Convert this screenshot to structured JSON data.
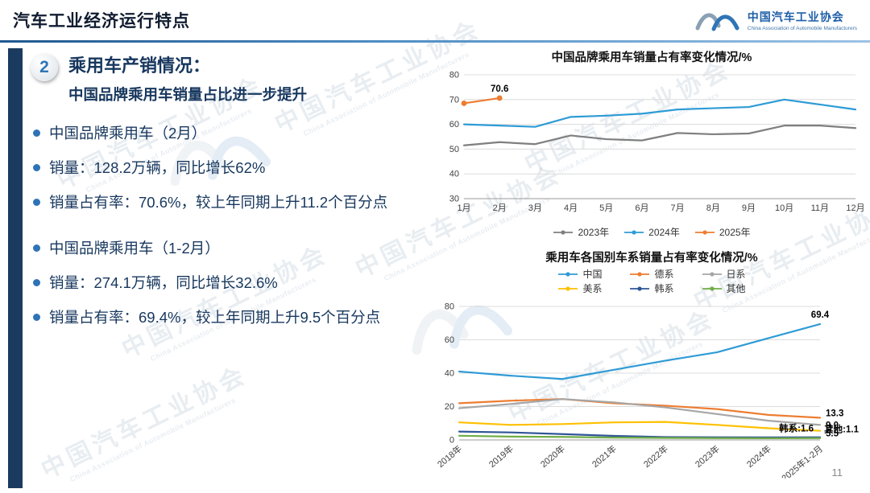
{
  "header": {
    "title": "汽车工业经济运行特点",
    "logo": {
      "org_cn": "中国汽车工业协会",
      "org_en": "China Association of Automobile Manufacturers"
    }
  },
  "section": {
    "number": "2",
    "heading": "乘用车产销情况：",
    "subheading": "中国品牌乘用车销量占比进一步提升"
  },
  "bullets_group1": [
    "中国品牌乘用车（2月）",
    "销量：128.2万辆，同比增长62%",
    "销量占有率：70.6%，较上年同期上升11.2个百分点"
  ],
  "bullets_group2": [
    "中国品牌乘用车（1-2月）",
    "销量：274.1万辆，同比增长32.6%",
    "销量占有率：69.4%，较上年同期上升9.5个百分点"
  ],
  "page_number": "11",
  "watermark": {
    "cn": "中国汽车工业协会",
    "en": "China Association of Automobile Manufacturers"
  },
  "accent_colors": {
    "navy": "#17375e",
    "bullet_blue": "#2e74b5",
    "header_rule_blue": "#4f8ec4"
  },
  "chart_data": [
    {
      "type": "line",
      "title": "中国品牌乘用车销量占有率变化情况/%",
      "categories": [
        "1月",
        "2月",
        "3月",
        "4月",
        "5月",
        "6月",
        "7月",
        "8月",
        "9月",
        "10月",
        "11月",
        "12月"
      ],
      "ylim": [
        30,
        80
      ],
      "yticks": [
        30,
        40,
        50,
        60,
        70,
        80
      ],
      "grid": true,
      "legend_position": "bottom",
      "margins": {
        "l": 38,
        "r": 16,
        "t": 12,
        "b": 26
      },
      "series": [
        {
          "name": "2023年",
          "color": "#7f7f7f",
          "values": [
            51.5,
            52.8,
            52.0,
            55.5,
            54.0,
            53.5,
            56.5,
            56.0,
            56.3,
            59.5,
            59.5,
            58.5
          ]
        },
        {
          "name": "2024年",
          "color": "#2e9bd6",
          "values": [
            60.0,
            59.5,
            59.0,
            63.0,
            63.5,
            64.3,
            66.0,
            66.5,
            67.0,
            70.0,
            68.0,
            66.0
          ]
        },
        {
          "name": "2025年",
          "color": "#ed7d31",
          "marker": true,
          "values": [
            68.5,
            70.6
          ],
          "end_label": "70.6",
          "label_offset": [
            0,
            -8
          ],
          "label_anchor": "middle"
        }
      ]
    },
    {
      "type": "line",
      "title": "乘用车各国别车系销量占有率变化情况/%",
      "categories": [
        "2018年",
        "2019年",
        "2020年",
        "2021年",
        "2022年",
        "2023年",
        "2024年",
        "2025年1-2月"
      ],
      "ylim": [
        0,
        80
      ],
      "yticks": [
        0,
        20,
        40,
        60,
        80
      ],
      "grid": true,
      "legend_position": "top",
      "x_rotated": true,
      "margins": {
        "l": 32,
        "r": 60,
        "t": 14,
        "b": 48
      },
      "series": [
        {
          "name": "中国",
          "color": "#2e9bd6",
          "values": [
            41.0,
            38.5,
            36.5,
            42.0,
            47.5,
            52.5,
            61.0,
            69.4
          ],
          "end_label": "69.4",
          "label_offset": [
            0,
            -8
          ],
          "label_anchor": "middle"
        },
        {
          "name": "德系",
          "color": "#ed7d31",
          "values": [
            22.0,
            23.5,
            24.5,
            22.0,
            20.5,
            18.5,
            15.0,
            13.3
          ],
          "end_label": "13.3",
          "label_offset": [
            7,
            -2
          ],
          "label_anchor": "start"
        },
        {
          "name": "日系",
          "color": "#a6a6a6",
          "values": [
            19.0,
            21.5,
            24.5,
            22.5,
            19.5,
            15.5,
            11.5,
            9.0
          ],
          "end_label": "9.0",
          "label_offset": [
            7,
            4
          ],
          "label_anchor": "start"
        },
        {
          "name": "美系",
          "color": "#ffc000",
          "values": [
            10.5,
            9.0,
            9.5,
            10.5,
            10.8,
            9.0,
            7.0,
            5.5
          ],
          "end_label": "5.5",
          "label_offset": [
            7,
            7
          ],
          "label_anchor": "start"
        },
        {
          "name": "韩系",
          "color": "#2f5597",
          "values": [
            5.0,
            4.5,
            3.5,
            2.4,
            1.7,
            1.6,
            1.5,
            1.6
          ],
          "end_label": "韩系:1.6",
          "label_offset": [
            -8,
            -7
          ],
          "label_anchor": "end"
        },
        {
          "name": "其他",
          "color": "#70ad47",
          "values": [
            2.5,
            2.0,
            1.8,
            1.4,
            1.2,
            1.1,
            1.0,
            1.1
          ],
          "end_label": "其他:1.1",
          "label_offset": [
            48,
            -7
          ],
          "label_anchor": "end"
        }
      ]
    }
  ]
}
